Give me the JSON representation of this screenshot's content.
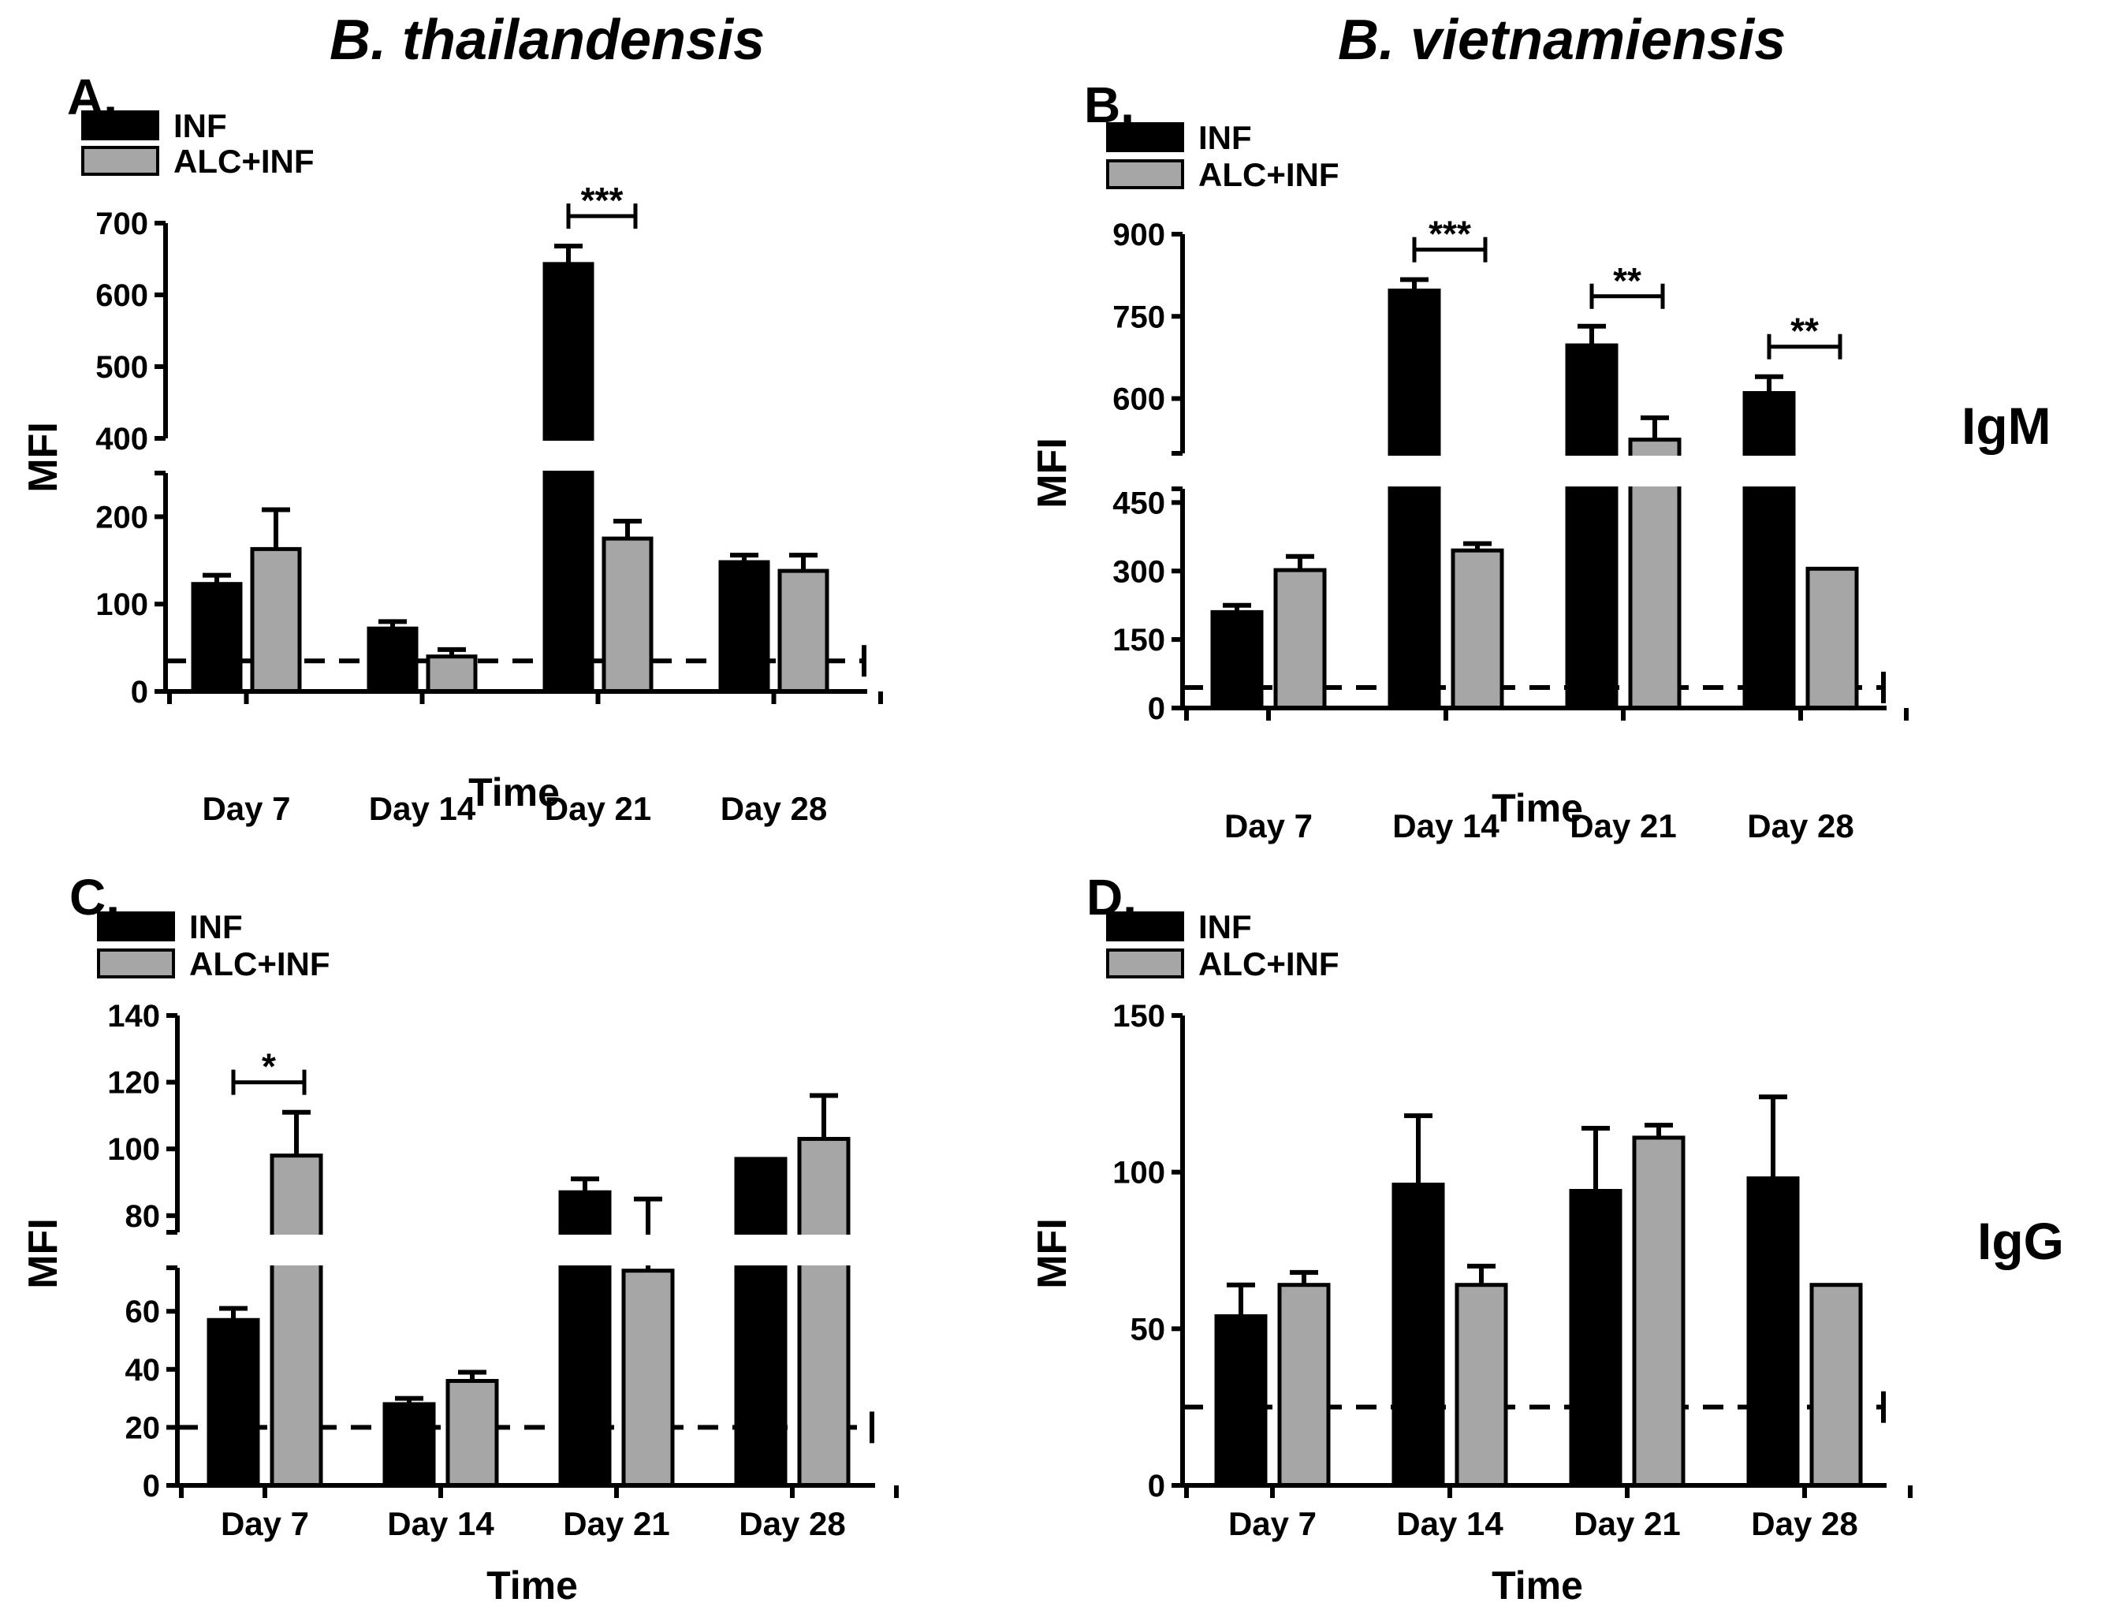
{
  "headers": {
    "left": "B. thailandensis",
    "right": "B. vietnamiensis"
  },
  "row_labels": {
    "top": "IgM",
    "bottom": "IgG"
  },
  "colors": {
    "inf": "#000000",
    "alc_inf": "#a6a6a6",
    "outline": "#000000"
  },
  "chart_data": [
    {
      "panel": "A.",
      "type": "bar",
      "xlabel": "Time",
      "ylabel": "MFI",
      "categories": [
        "Day 7",
        "Day 14",
        "Day 21",
        "Day 28"
      ],
      "series": [
        {
          "name": "INF",
          "values": [
            123,
            72,
            643,
            148
          ],
          "errors": [
            10,
            8,
            25,
            8
          ]
        },
        {
          "name": "ALC+INF",
          "values": [
            163,
            40,
            175,
            138
          ],
          "errors": [
            45,
            8,
            20,
            18
          ]
        }
      ],
      "axis_break": {
        "lower_range": [
          0,
          250
        ],
        "upper_range": [
          400,
          700
        ]
      },
      "yticks_lower": [
        "0",
        "100",
        "200"
      ],
      "yticks_upper": [
        "400",
        "500",
        "600",
        "700"
      ],
      "threshold": 35,
      "annotations": [
        {
          "category": "Day 21",
          "text": "***"
        }
      ],
      "legend": "top-left"
    },
    {
      "panel": "B.",
      "type": "bar",
      "xlabel": "Time",
      "ylabel": "MFI",
      "categories": [
        "Day 7",
        "Day 14",
        "Day 21",
        "Day 28"
      ],
      "series": [
        {
          "name": "INF",
          "values": [
            210,
            797,
            697,
            610
          ],
          "errors": [
            15,
            20,
            35,
            30
          ]
        },
        {
          "name": "ALC+INF",
          "values": [
            302,
            345,
            525,
            305
          ],
          "errors": [
            30,
            15,
            40,
            0
          ]
        }
      ],
      "axis_break": {
        "lower_range": [
          0,
          480
        ],
        "upper_range": [
          500,
          900
        ]
      },
      "yticks_lower": [
        "0",
        "150",
        "300",
        "450"
      ],
      "yticks_upper": [
        "600",
        "750",
        "900"
      ],
      "threshold": 45,
      "annotations": [
        {
          "category": "Day 14",
          "text": "***"
        },
        {
          "category": "Day 21",
          "text": "**"
        },
        {
          "category": "Day 28",
          "text": "**"
        }
      ],
      "legend": "top-left"
    },
    {
      "panel": "C.",
      "type": "bar",
      "xlabel": "Time",
      "ylabel": "MFI",
      "categories": [
        "Day 7",
        "Day 14",
        "Day 21",
        "Day 28"
      ],
      "series": [
        {
          "name": "INF",
          "values": [
            57,
            28,
            87,
            97
          ],
          "errors": [
            4,
            2,
            4,
            0
          ]
        },
        {
          "name": "ALC+INF",
          "values": [
            98,
            36,
            74,
            103
          ],
          "errors": [
            13,
            3,
            11,
            13
          ]
        }
      ],
      "axis_break": {
        "lower_range": [
          0,
          75
        ],
        "upper_range": [
          75,
          140
        ]
      },
      "yticks_lower": [
        "0",
        "20",
        "40",
        "60"
      ],
      "yticks_upper": [
        "80",
        "100",
        "120",
        "140"
      ],
      "threshold": 20,
      "annotations": [
        {
          "category": "Day 7",
          "text": "*"
        }
      ],
      "legend": "top-left"
    },
    {
      "panel": "D.",
      "type": "bar",
      "xlabel": "Time",
      "ylabel": "MFI",
      "categories": [
        "Day 7",
        "Day 14",
        "Day 21",
        "Day 28"
      ],
      "series": [
        {
          "name": "INF",
          "values": [
            54,
            96,
            94,
            98
          ],
          "errors": [
            10,
            22,
            20,
            26
          ]
        },
        {
          "name": "ALC+INF",
          "values": [
            64,
            64,
            111,
            64
          ],
          "errors": [
            4,
            6,
            4,
            0
          ]
        }
      ],
      "ylim": [
        0,
        150
      ],
      "yticks": [
        "0",
        "50",
        "100",
        "150"
      ],
      "threshold": 25,
      "annotations": [],
      "legend": "top-left"
    }
  ]
}
